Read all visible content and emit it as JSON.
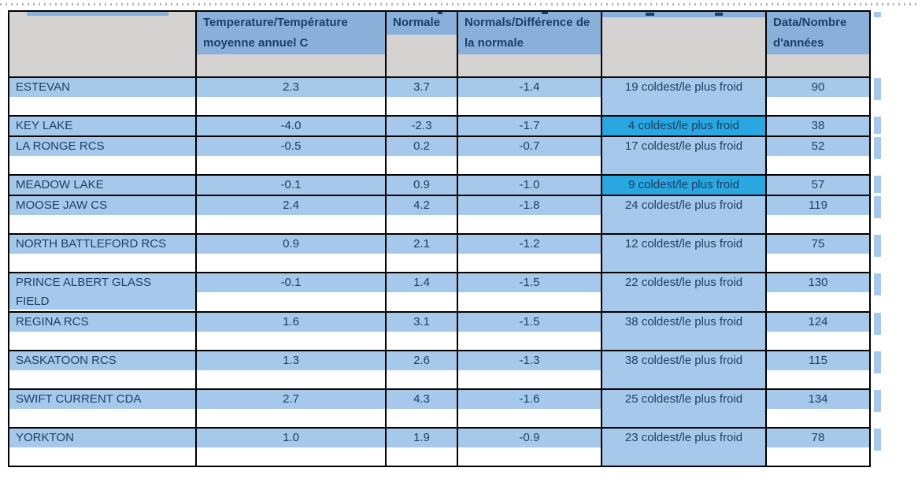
{
  "page": {
    "background": "#ffffff"
  },
  "colors": {
    "row_band_blue": "#a6c8ea",
    "header_blue": "#8ab0da",
    "highlight_blue": "#2aa6e0",
    "header_gray": "#d5d3d1",
    "text_navy": "#1b4168",
    "border": "#000000",
    "pagebreak_dots": "#aab3bd"
  },
  "table": {
    "columns": [
      {
        "key": "station",
        "label": ""
      },
      {
        "key": "temperature",
        "label": "Temperature/Température moyenne annuel C"
      },
      {
        "key": "normale",
        "label": "Normale"
      },
      {
        "key": "difference",
        "label": "Normals/Différence de la normale"
      },
      {
        "key": "rank",
        "label": ""
      },
      {
        "key": "years",
        "label": "Data/Nombre d'années"
      }
    ],
    "rows": [
      {
        "station": "ESTEVAN",
        "temperature": "2.3",
        "normale": "3.7",
        "difference": "-1.4",
        "rank": "19 coldest/le plus froid",
        "years": "90",
        "highlight": false,
        "lines": 2
      },
      {
        "station": "KEY LAKE",
        "temperature": "-4.0",
        "normale": "-2.3",
        "difference": "-1.7",
        "rank": "4 coldest/le plus froid",
        "years": "38",
        "highlight": true,
        "lines": 1
      },
      {
        "station": "LA RONGE RCS",
        "temperature": "-0.5",
        "normale": "0.2",
        "difference": "-0.7",
        "rank": "17 coldest/le plus froid",
        "years": "52",
        "highlight": false,
        "lines": 2
      },
      {
        "station": "MEADOW LAKE",
        "temperature": "-0.1",
        "normale": "0.9",
        "difference": "-1.0",
        "rank": "9 coldest/le plus froid",
        "years": "57",
        "highlight": true,
        "lines": 1
      },
      {
        "station": "MOOSE JAW CS",
        "temperature": "2.4",
        "normale": "4.2",
        "difference": "-1.8",
        "rank": "24 coldest/le plus froid",
        "years": "119",
        "highlight": false,
        "lines": 2
      },
      {
        "station": "NORTH BATTLEFORD RCS",
        "temperature": "0.9",
        "normale": "2.1",
        "difference": "-1.2",
        "rank": "12 coldest/le plus froid",
        "years": "75",
        "highlight": false,
        "lines": 2
      },
      {
        "station": "PRINCE ALBERT GLASS FIELD",
        "temperature": "-0.1",
        "normale": "1.4",
        "difference": "-1.5",
        "rank": "22 coldest/le plus froid",
        "years": "130",
        "highlight": false,
        "lines": 2,
        "name_wraps": true
      },
      {
        "station": "REGINA RCS",
        "temperature": "1.6",
        "normale": "3.1",
        "difference": "-1.5",
        "rank": "38 coldest/le plus froid",
        "years": "124",
        "highlight": false,
        "lines": 2
      },
      {
        "station": "SASKATOON RCS",
        "temperature": "1.3",
        "normale": "2.6",
        "difference": "-1.3",
        "rank": "38 coldest/le plus froid",
        "years": "115",
        "highlight": false,
        "lines": 2
      },
      {
        "station": "SWIFT CURRENT CDA",
        "temperature": "2.7",
        "normale": "4.3",
        "difference": "-1.6",
        "rank": "25 coldest/le plus froid",
        "years": "134",
        "highlight": false,
        "lines": 2
      },
      {
        "station": "YORKTON",
        "temperature": "1.0",
        "normale": "1.9",
        "difference": "-0.9",
        "rank": "23 coldest/le plus froid",
        "years": "78",
        "highlight": false,
        "lines": 2
      }
    ]
  }
}
